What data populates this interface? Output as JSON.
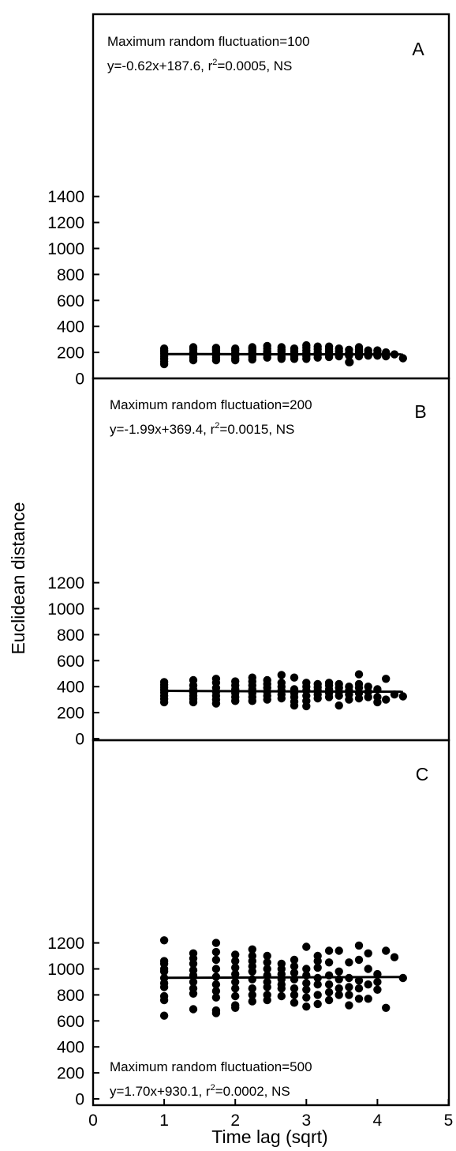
{
  "colors": {
    "ink": "#000000",
    "background": "#ffffff"
  },
  "figure": {
    "ylabel": "Euclidean distance",
    "xlabel": "Time lag (sqrt)"
  },
  "chart_data": [
    {
      "type": "scatter",
      "panel": "A",
      "annotation_line1": "Maximum random fluctuation=100",
      "annotation_eq": "y=-0.62x+187.6, r",
      "annotation_sup": "2",
      "annotation_tail": "=0.0005, NS",
      "annotation_position": "top-left",
      "ylim": [
        0,
        1400
      ],
      "yticks": [
        0,
        200,
        400,
        600,
        800,
        1000,
        1200,
        1400
      ],
      "xlim": [
        0,
        5
      ],
      "fit": {
        "slope": -0.62,
        "intercept": 187.6,
        "x_range": [
          1.0,
          4.36
        ]
      },
      "x": [
        1.0,
        1.0,
        1.0,
        1.0,
        1.0,
        1.0,
        1.0,
        1.0,
        1.41,
        1.41,
        1.41,
        1.41,
        1.41,
        1.41,
        1.73,
        1.73,
        1.73,
        1.73,
        1.73,
        1.73,
        1.73,
        2.0,
        2.0,
        2.0,
        2.0,
        2.0,
        2.0,
        2.24,
        2.24,
        2.24,
        2.24,
        2.24,
        2.24,
        2.24,
        2.45,
        2.45,
        2.45,
        2.45,
        2.45,
        2.45,
        2.65,
        2.65,
        2.65,
        2.65,
        2.65,
        2.65,
        2.83,
        2.83,
        2.83,
        2.83,
        2.83,
        3.0,
        3.0,
        3.0,
        3.0,
        3.0,
        3.0,
        3.16,
        3.16,
        3.16,
        3.16,
        3.16,
        3.32,
        3.32,
        3.32,
        3.32,
        3.32,
        3.46,
        3.46,
        3.46,
        3.46,
        3.6,
        3.6,
        3.6,
        3.6,
        3.61,
        3.74,
        3.74,
        3.74,
        3.74,
        3.74,
        3.87,
        3.87,
        3.87,
        4.0,
        4.0,
        4.0,
        4.12,
        4.12,
        4.24,
        4.36
      ],
      "y": [
        110,
        130,
        150,
        170,
        190,
        205,
        215,
        230,
        140,
        160,
        180,
        200,
        225,
        240,
        140,
        160,
        180,
        200,
        215,
        225,
        235,
        140,
        155,
        175,
        195,
        215,
        230,
        145,
        165,
        185,
        200,
        215,
        230,
        240,
        160,
        180,
        195,
        210,
        230,
        250,
        150,
        165,
        185,
        205,
        220,
        240,
        150,
        170,
        190,
        210,
        230,
        150,
        170,
        195,
        215,
        235,
        255,
        160,
        180,
        200,
        225,
        245,
        165,
        185,
        205,
        225,
        245,
        170,
        190,
        210,
        230,
        125,
        175,
        195,
        220,
        125,
        170,
        190,
        205,
        220,
        240,
        175,
        195,
        215,
        175,
        195,
        215,
        170,
        200,
        185,
        155
      ]
    },
    {
      "type": "scatter",
      "panel": "B",
      "annotation_line1": "Maximum random fluctuation=200",
      "annotation_eq": "y=-1.99x+369.4, r",
      "annotation_sup": "2",
      "annotation_tail": "=0.0015, NS",
      "annotation_position": "top-left",
      "ylim": [
        0,
        1400
      ],
      "yticks": [
        0,
        200,
        400,
        600,
        800,
        1000,
        1200
      ],
      "xlim": [
        0,
        5
      ],
      "fit": {
        "slope": -1.99,
        "intercept": 369.4,
        "x_range": [
          1.0,
          4.36
        ]
      },
      "x": [
        1.0,
        1.0,
        1.0,
        1.0,
        1.0,
        1.0,
        1.0,
        1.0,
        1.41,
        1.41,
        1.41,
        1.41,
        1.41,
        1.41,
        1.41,
        1.73,
        1.73,
        1.73,
        1.73,
        1.73,
        1.73,
        1.73,
        2.0,
        2.0,
        2.0,
        2.0,
        2.0,
        2.0,
        2.24,
        2.24,
        2.24,
        2.24,
        2.24,
        2.24,
        2.24,
        2.45,
        2.45,
        2.45,
        2.45,
        2.45,
        2.45,
        2.65,
        2.65,
        2.65,
        2.65,
        2.65,
        2.65,
        2.83,
        2.83,
        2.83,
        2.83,
        2.83,
        2.83,
        3.0,
        3.0,
        3.0,
        3.0,
        3.0,
        3.0,
        3.16,
        3.16,
        3.16,
        3.16,
        3.16,
        3.32,
        3.32,
        3.32,
        3.32,
        3.32,
        3.46,
        3.46,
        3.46,
        3.46,
        3.46,
        3.6,
        3.6,
        3.6,
        3.6,
        3.74,
        3.74,
        3.74,
        3.74,
        3.74,
        3.87,
        3.87,
        3.87,
        4.0,
        4.0,
        4.0,
        4.12,
        4.12,
        4.24,
        4.36
      ],
      "y": [
        280,
        305,
        330,
        355,
        375,
        395,
        415,
        435,
        280,
        305,
        330,
        355,
        380,
        410,
        450,
        270,
        300,
        330,
        360,
        390,
        430,
        460,
        290,
        320,
        350,
        380,
        410,
        440,
        290,
        320,
        350,
        380,
        410,
        440,
        470,
        300,
        330,
        360,
        390,
        420,
        450,
        310,
        340,
        370,
        400,
        430,
        490,
        255,
        285,
        320,
        350,
        380,
        470,
        250,
        290,
        330,
        370,
        400,
        430,
        310,
        340,
        370,
        395,
        420,
        320,
        350,
        380,
        410,
        430,
        255,
        330,
        360,
        390,
        420,
        300,
        340,
        370,
        400,
        310,
        350,
        390,
        420,
        495,
        320,
        360,
        400,
        280,
        320,
        380,
        300,
        460,
        340,
        325
      ]
    },
    {
      "type": "scatter",
      "panel": "C",
      "annotation_line1": "Maximum random fluctuation=500",
      "annotation_eq": "y=1.70x+930.1, r",
      "annotation_sup": "2",
      "annotation_tail": "=0.0002, NS",
      "annotation_position": "bottom-left",
      "ylim": [
        0,
        1400
      ],
      "yticks": [
        0,
        200,
        400,
        600,
        800,
        1000,
        1200
      ],
      "xlim": [
        0,
        5
      ],
      "xticks": [
        0,
        1,
        2,
        3,
        4,
        5
      ],
      "fit": {
        "slope": 1.7,
        "intercept": 930.1,
        "x_range": [
          1.0,
          4.36
        ]
      },
      "x": [
        1.0,
        1.0,
        1.0,
        1.0,
        1.0,
        1.0,
        1.0,
        1.0,
        1.0,
        1.0,
        1.0,
        1.41,
        1.41,
        1.41,
        1.41,
        1.41,
        1.41,
        1.41,
        1.41,
        1.41,
        1.73,
        1.73,
        1.73,
        1.73,
        1.73,
        1.73,
        1.73,
        1.73,
        1.73,
        1.73,
        2.0,
        2.0,
        2.0,
        2.0,
        2.0,
        2.0,
        2.0,
        2.0,
        2.0,
        2.24,
        2.24,
        2.24,
        2.24,
        2.24,
        2.24,
        2.24,
        2.24,
        2.24,
        2.45,
        2.45,
        2.45,
        2.45,
        2.45,
        2.45,
        2.45,
        2.45,
        2.65,
        2.65,
        2.65,
        2.65,
        2.65,
        2.65,
        2.65,
        2.83,
        2.83,
        2.83,
        2.83,
        2.83,
        2.83,
        2.83,
        3.0,
        3.0,
        3.0,
        3.0,
        3.0,
        3.0,
        3.0,
        3.16,
        3.16,
        3.16,
        3.16,
        3.16,
        3.16,
        3.16,
        3.32,
        3.32,
        3.32,
        3.32,
        3.32,
        3.32,
        3.46,
        3.46,
        3.46,
        3.46,
        3.46,
        3.6,
        3.6,
        3.6,
        3.6,
        3.6,
        3.74,
        3.74,
        3.74,
        3.74,
        3.74,
        3.87,
        3.87,
        3.87,
        3.87,
        4.0,
        4.0,
        4.0,
        4.12,
        4.12,
        4.24,
        4.36
      ],
      "y": [
        640,
        760,
        790,
        860,
        890,
        930,
        980,
        1000,
        1040,
        1060,
        1220,
        690,
        810,
        850,
        900,
        950,
        990,
        1040,
        1080,
        1120,
        660,
        680,
        780,
        830,
        880,
        940,
        1000,
        1070,
        1130,
        1200,
        700,
        720,
        790,
        850,
        900,
        960,
        1010,
        1060,
        1110,
        750,
        800,
        850,
        920,
        980,
        1020,
        1060,
        1100,
        1150,
        760,
        800,
        860,
        900,
        950,
        1000,
        1050,
        1100,
        790,
        850,
        880,
        920,
        960,
        1000,
        1040,
        740,
        800,
        850,
        920,
        970,
        1020,
        1070,
        710,
        780,
        840,
        890,
        950,
        1000,
        1170,
        730,
        800,
        880,
        930,
        1010,
        1060,
        1100,
        760,
        820,
        880,
        950,
        1050,
        1140,
        800,
        850,
        920,
        980,
        1140,
        720,
        800,
        860,
        930,
        1050,
        770,
        850,
        910,
        1070,
        1180,
        770,
        880,
        1000,
        1120,
        840,
        900,
        960,
        700,
        1140,
        1090,
        930
      ]
    }
  ]
}
